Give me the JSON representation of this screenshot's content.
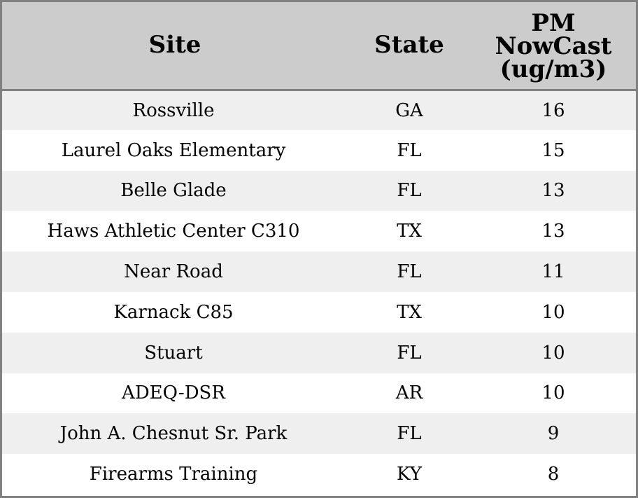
{
  "chart_data": {
    "type": "table",
    "columns": {
      "site": "Site",
      "state": "State",
      "pm": [
        "PM",
        "NowCast",
        "(ug/m3)"
      ]
    },
    "rows": [
      {
        "site": "Rossville",
        "state": "GA",
        "pm": 16
      },
      {
        "site": "Laurel Oaks Elementary",
        "state": "FL",
        "pm": 15
      },
      {
        "site": "Belle Glade",
        "state": "FL",
        "pm": 13
      },
      {
        "site": "Haws Athletic Center C310",
        "state": "TX",
        "pm": 13
      },
      {
        "site": "Near Road",
        "state": "FL",
        "pm": 11
      },
      {
        "site": "Karnack C85",
        "state": "TX",
        "pm": 10
      },
      {
        "site": "Stuart",
        "state": "FL",
        "pm": 10
      },
      {
        "site": "ADEQ-DSR",
        "state": "AR",
        "pm": 10
      },
      {
        "site": "John A. Chesnut Sr. Park",
        "state": "FL",
        "pm": 9
      },
      {
        "site": "Firearms Training",
        "state": "KY",
        "pm": 8
      }
    ],
    "colors": {
      "header_bg": "#cccccc",
      "odd_row_bg": "#efefef",
      "even_row_bg": "#ffffff",
      "border": "#808080"
    }
  }
}
